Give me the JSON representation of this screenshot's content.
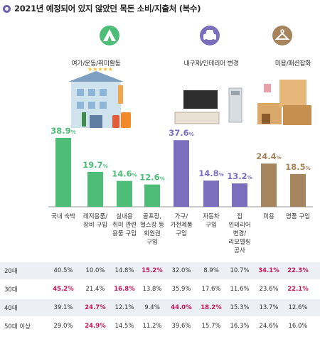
{
  "title": "2021년 예정되어 있지 않았던 목돈 소비/지출처 (복수)",
  "group_labels": [
    "여가/운동/취미활동",
    "내구재/인테리어 변경",
    "미용/패션잡화"
  ],
  "icons": [
    "tent-icon",
    "car-icon",
    "clothes-hanger-icon"
  ],
  "colors": {
    "green": "#4dbd78",
    "purple": "#7b6fbd",
    "brown": "#a5845e",
    "accent": "#6b5fb2",
    "highlight": "#c2185b"
  },
  "chart_data": {
    "type": "bar",
    "categories": [
      "국내 숙박",
      "레저용품/\n장비 구입",
      "실내용\n취미 관련\n용품 구입",
      "골프장,\n헬스장 등\n회원권\n구입",
      "가구/\n가전제품\n구입",
      "자동차\n구입",
      "집\n인테리어\n변경/\n리모델링\n공사",
      "미용",
      "명품 구입"
    ],
    "values": [
      38.9,
      19.7,
      14.6,
      12.6,
      37.6,
      14.8,
      13.2,
      24.4,
      18.5
    ],
    "value_labels": [
      "38.9%",
      "19.7%",
      "14.6%",
      "12.6%",
      "37.6%",
      "14.8%",
      "13.2%",
      "24.4%",
      "18.5%"
    ],
    "groups": [
      "green",
      "green",
      "green",
      "green",
      "purple",
      "purple",
      "purple",
      "brown",
      "brown"
    ],
    "ylim": [
      0,
      40
    ]
  },
  "table": {
    "rows": [
      {
        "age": "20대",
        "values": [
          "40.5%",
          "10.0%",
          "14.8%",
          "15.2%",
          "32.0%",
          "8.9%",
          "10.7%",
          "34.1%",
          "22.3%"
        ],
        "highlight": [
          false,
          false,
          false,
          true,
          false,
          false,
          false,
          true,
          true
        ]
      },
      {
        "age": "30대",
        "values": [
          "45.2%",
          "21.4%",
          "16.8%",
          "13.8%",
          "35.9%",
          "17.6%",
          "11.6%",
          "23.6%",
          "22.1%"
        ],
        "highlight": [
          true,
          false,
          true,
          false,
          false,
          false,
          false,
          false,
          true
        ]
      },
      {
        "age": "40대",
        "values": [
          "39.1%",
          "24.7%",
          "12.1%",
          "9.4%",
          "44.0%",
          "18.2%",
          "15.3%",
          "13.7%",
          "12.6%"
        ],
        "highlight": [
          false,
          true,
          false,
          false,
          true,
          true,
          false,
          false,
          false
        ]
      },
      {
        "age": "50대 이상",
        "values": [
          "29.0%",
          "24.9%",
          "14.5%",
          "11.2%",
          "39.6%",
          "15.7%",
          "16.3%",
          "24.6%",
          "16.0%"
        ],
        "highlight": [
          false,
          true,
          false,
          false,
          false,
          false,
          false,
          false,
          false
        ]
      }
    ]
  }
}
